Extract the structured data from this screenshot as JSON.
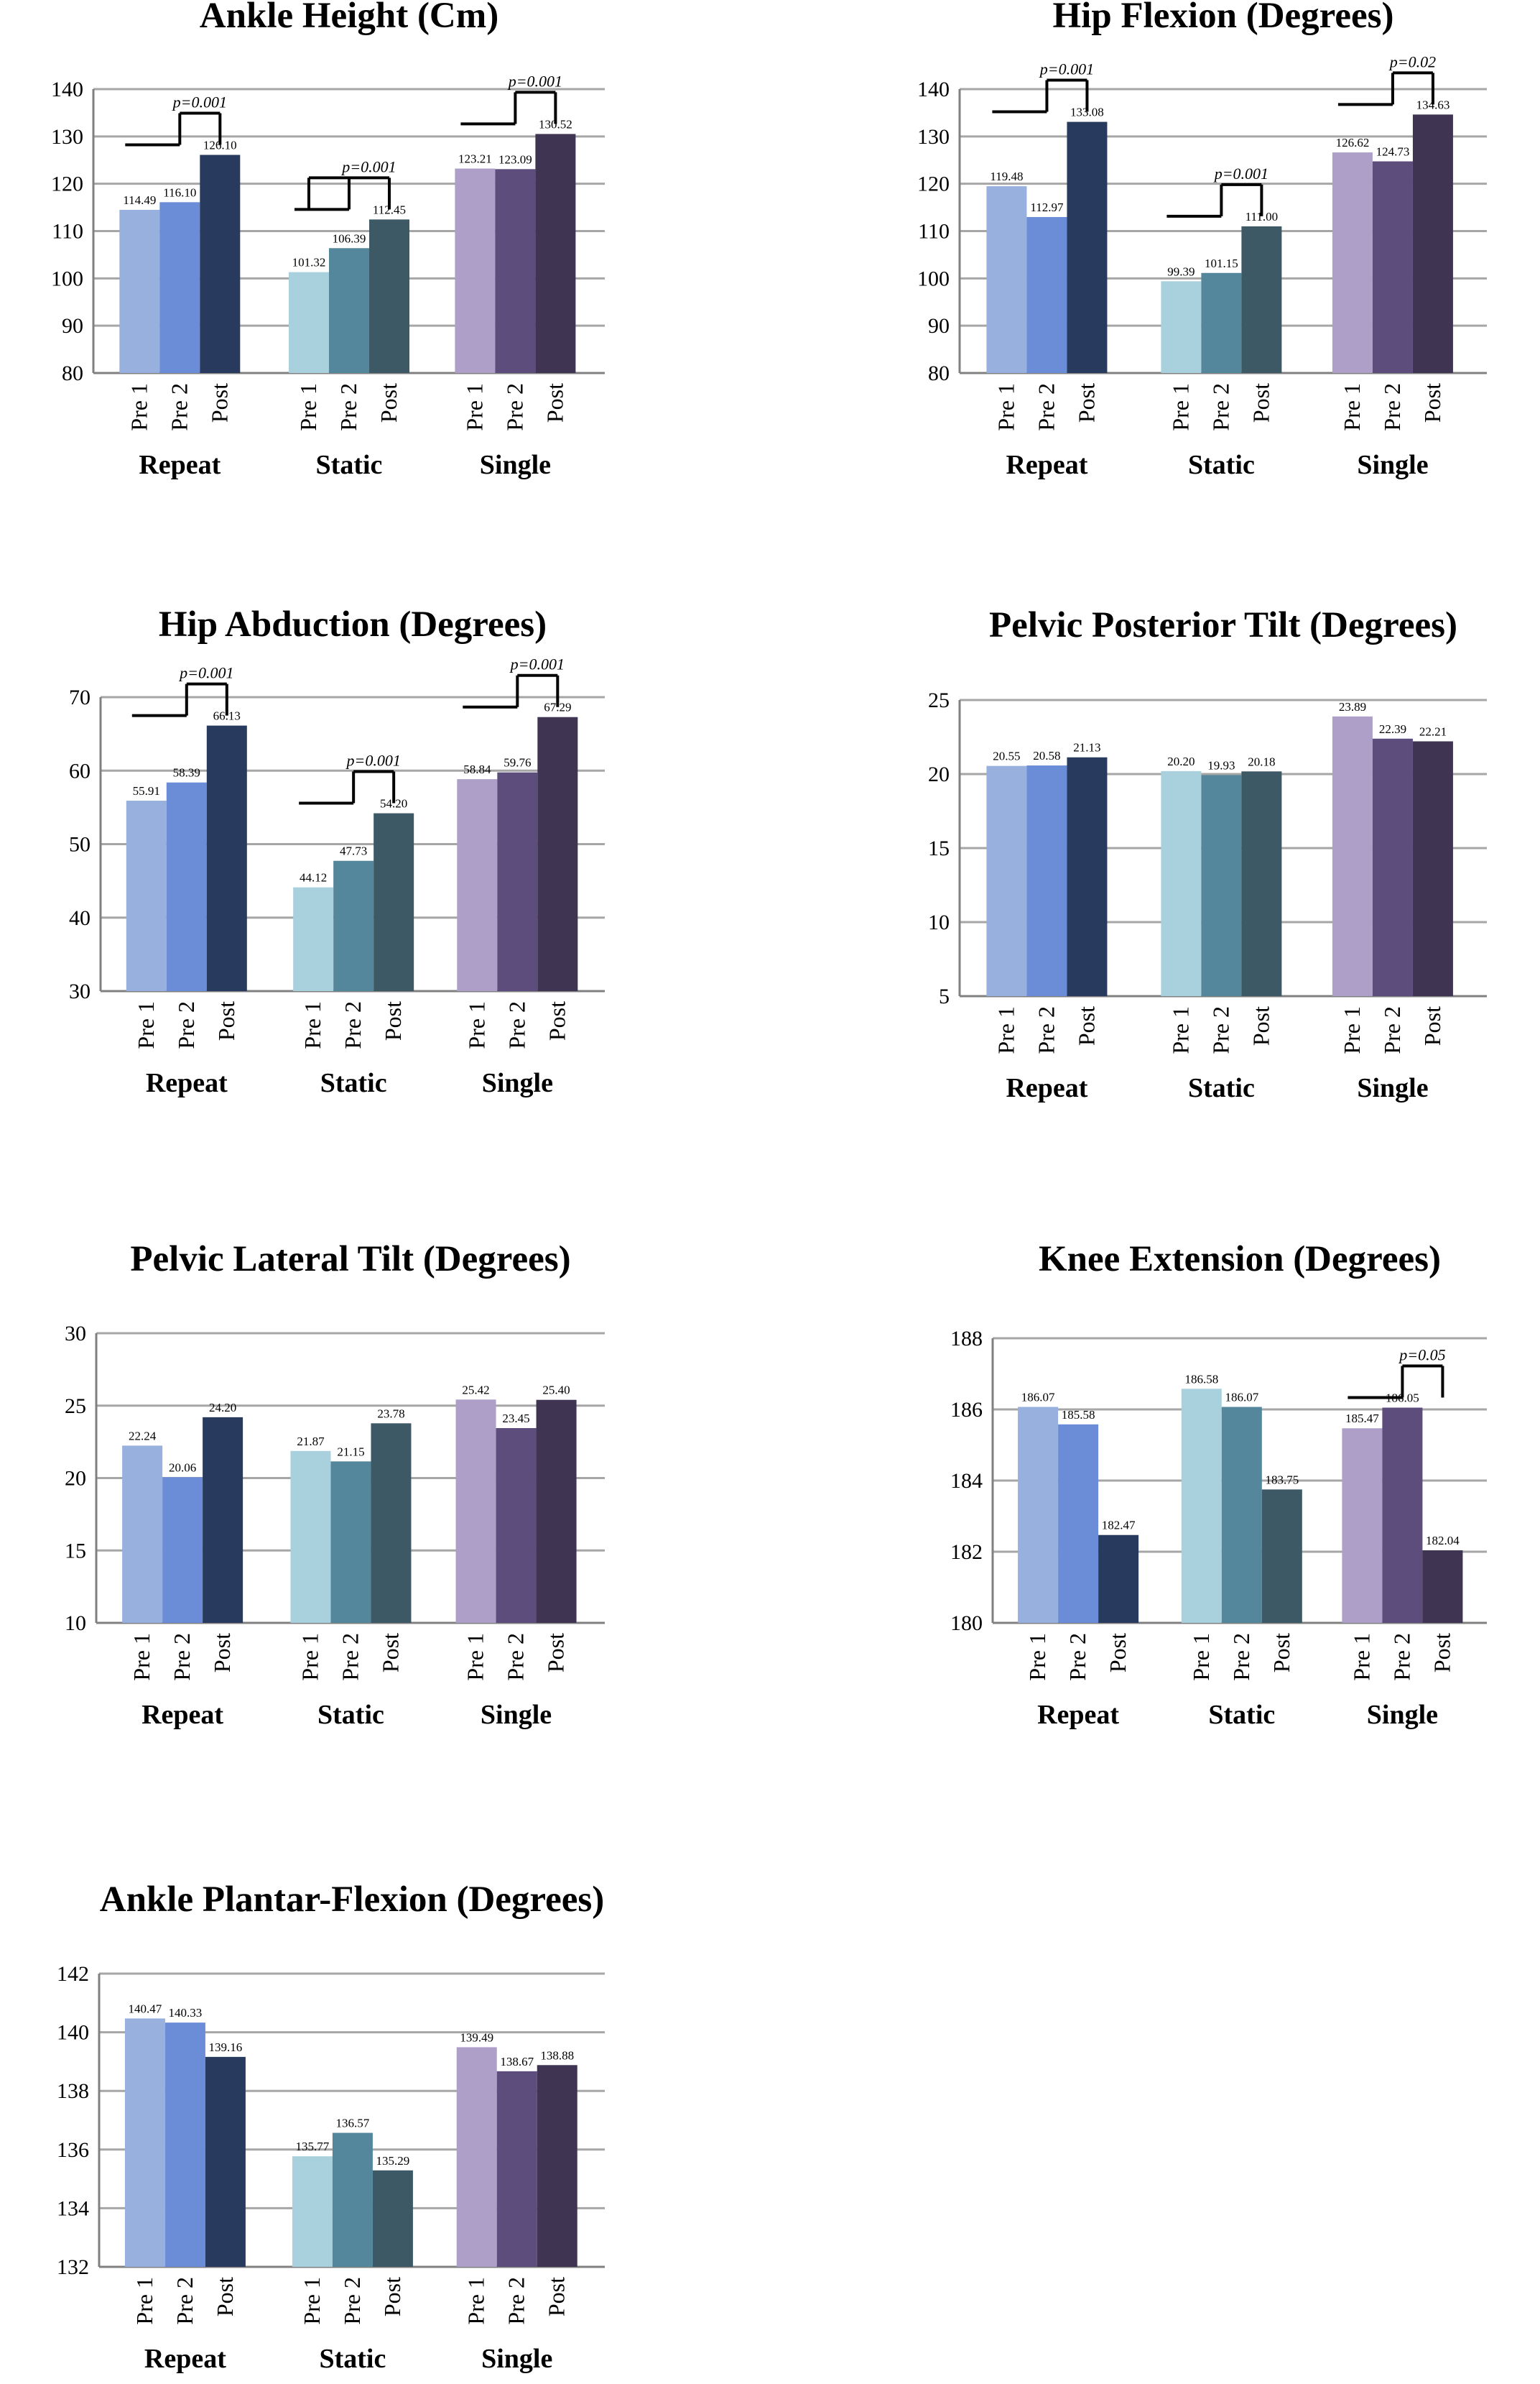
{
  "figure": {
    "colors": {
      "Repeat": [
        "#97b0de",
        "#6b8cd6",
        "#283a5e"
      ],
      "Static": [
        "#a9d1dd",
        "#55879c",
        "#3c5965"
      ],
      "Single": [
        "#ad9fc8",
        "#5c4d7c",
        "#3f3553"
      ],
      "gridline": "#a6a6a6",
      "axis": "#808080",
      "text": "#000000"
    }
  },
  "chart_data": [
    {
      "type": "bar",
      "title": "Ankle Height (Cm)",
      "groups": [
        "Repeat",
        "Static",
        "Single"
      ],
      "categories": [
        "Pre 1",
        "Pre 2",
        "Post"
      ],
      "series": [
        {
          "values": [
            114.49,
            116.1,
            126.1
          ],
          "labels": [
            "114.49",
            "116.10",
            "126.10"
          ]
        },
        {
          "values": [
            101.32,
            106.39,
            112.45
          ],
          "labels": [
            "101.32",
            "106.39",
            "112.45"
          ]
        },
        {
          "values": [
            123.21,
            123.09,
            130.52
          ],
          "labels": [
            "123.21",
            "123.09",
            "130.52"
          ]
        }
      ],
      "ylim": [
        80,
        140
      ],
      "yticks": [
        80,
        90,
        100,
        110,
        120,
        130,
        140
      ],
      "grid": true,
      "annotations": [
        {
          "group": 0,
          "text": "p=0.001",
          "from": 0,
          "to": 2
        },
        {
          "group": 1,
          "text": "p=0.001",
          "from": 0,
          "to": 2,
          "mid": 1
        },
        {
          "group": 2,
          "text": "p=0.001",
          "from": 0,
          "to": 2
        }
      ]
    },
    {
      "type": "bar",
      "title": "Hip Flexion (Degrees)",
      "groups": [
        "Repeat",
        "Static",
        "Single"
      ],
      "categories": [
        "Pre 1",
        "Pre 2",
        "Post"
      ],
      "series": [
        {
          "values": [
            119.48,
            112.97,
            133.08
          ],
          "labels": [
            "119.48",
            "112.97",
            "133.08"
          ]
        },
        {
          "values": [
            99.39,
            101.15,
            111.0
          ],
          "labels": [
            "99.39",
            "101.15",
            "111.00"
          ]
        },
        {
          "values": [
            126.62,
            124.73,
            134.63
          ],
          "labels": [
            "126.62",
            "124.73",
            "134.63"
          ]
        }
      ],
      "ylim": [
        80,
        140
      ],
      "yticks": [
        80,
        90,
        100,
        110,
        120,
        130,
        140
      ],
      "grid": true,
      "annotations": [
        {
          "group": 0,
          "text": "p=0.001",
          "from": 0,
          "to": 2
        },
        {
          "group": 1,
          "text": "p=0.001",
          "from": 0,
          "to": 2
        },
        {
          "group": 2,
          "text": "p=0.02",
          "from": 0,
          "to": 2
        }
      ]
    },
    {
      "type": "bar",
      "title": "Hip Abduction (Degrees)",
      "groups": [
        "Repeat",
        "Static",
        "Single"
      ],
      "categories": [
        "Pre 1",
        "Pre 2",
        "Post"
      ],
      "series": [
        {
          "values": [
            55.91,
            58.39,
            66.13
          ],
          "labels": [
            "55.91",
            "58.39",
            "66.13"
          ]
        },
        {
          "values": [
            44.12,
            47.73,
            54.2
          ],
          "labels": [
            "44.12",
            "47.73",
            "54.20"
          ]
        },
        {
          "values": [
            58.84,
            59.76,
            67.29
          ],
          "labels": [
            "58.84",
            "59.76",
            "67.29"
          ]
        }
      ],
      "ylim": [
        30,
        70
      ],
      "yticks": [
        30,
        40,
        50,
        60,
        70
      ],
      "grid": true,
      "annotations": [
        {
          "group": 0,
          "text": "p=0.001",
          "from": 0,
          "to": 2
        },
        {
          "group": 1,
          "text": "p=0.001",
          "from": 0,
          "to": 2
        },
        {
          "group": 2,
          "text": "p=0.001",
          "from": 0,
          "to": 2
        }
      ]
    },
    {
      "type": "bar",
      "title": "Pelvic Posterior Tilt (Degrees)",
      "groups": [
        "Repeat",
        "Static",
        "Single"
      ],
      "categories": [
        "Pre 1",
        "Pre 2",
        "Post"
      ],
      "series": [
        {
          "values": [
            20.55,
            20.58,
            21.13
          ],
          "labels": [
            "20.55",
            "20.58",
            "21.13"
          ]
        },
        {
          "values": [
            20.2,
            19.93,
            20.18
          ],
          "labels": [
            "20.20",
            "19.93",
            "20.18"
          ]
        },
        {
          "values": [
            23.89,
            22.39,
            22.21
          ],
          "labels": [
            "23.89",
            "22.39",
            "22.21"
          ]
        }
      ],
      "ylim": [
        5,
        25
      ],
      "yticks": [
        5,
        10,
        15,
        20,
        25
      ],
      "grid": true,
      "annotations": []
    },
    {
      "type": "bar",
      "title": "Pelvic Lateral Tilt (Degrees)",
      "groups": [
        "Repeat",
        "Static",
        "Single"
      ],
      "categories": [
        "Pre 1",
        "Pre 2",
        "Post"
      ],
      "series": [
        {
          "values": [
            22.24,
            20.06,
            24.2
          ],
          "labels": [
            "22.24",
            "20.06",
            "24.20"
          ]
        },
        {
          "values": [
            21.87,
            21.15,
            23.78
          ],
          "labels": [
            "21.87",
            "21.15",
            "23.78"
          ]
        },
        {
          "values": [
            25.42,
            23.45,
            25.4
          ],
          "labels": [
            "25.42",
            "23.45",
            "25.40"
          ]
        }
      ],
      "ylim": [
        10,
        30
      ],
      "yticks": [
        10,
        15,
        20,
        25,
        30
      ],
      "grid": true,
      "annotations": []
    },
    {
      "type": "bar",
      "title": "Knee Extension (Degrees)",
      "groups": [
        "Repeat",
        "Static",
        "Single"
      ],
      "categories": [
        "Pre 1",
        "Pre 2",
        "Post"
      ],
      "series": [
        {
          "values": [
            186.07,
            185.58,
            182.47
          ],
          "labels": [
            "186.07",
            "185.58",
            "182.47"
          ]
        },
        {
          "values": [
            186.58,
            186.07,
            183.75
          ],
          "labels": [
            "186.58",
            "186.07",
            "183.75"
          ]
        },
        {
          "values": [
            185.47,
            186.05,
            182.04
          ],
          "labels": [
            "185.47",
            "186.05",
            "182.04"
          ]
        }
      ],
      "ylim": [
        180,
        188
      ],
      "yticks": [
        180,
        182,
        184,
        186,
        188
      ],
      "grid": true,
      "annotations": [
        {
          "group": 2,
          "text": "p=0.05",
          "from": 0,
          "to": 2
        }
      ]
    },
    {
      "type": "bar",
      "title": "Ankle Plantar-Flexion (Degrees)",
      "groups": [
        "Repeat",
        "Static",
        "Single"
      ],
      "categories": [
        "Pre 1",
        "Pre 2",
        "Post"
      ],
      "series": [
        {
          "values": [
            140.47,
            140.33,
            139.16
          ],
          "labels": [
            "140.47",
            "140.33",
            "139.16"
          ]
        },
        {
          "values": [
            135.77,
            136.57,
            135.29
          ],
          "labels": [
            "135.77",
            "136.57",
            "135.29"
          ]
        },
        {
          "values": [
            139.49,
            138.67,
            138.88
          ],
          "labels": [
            "139.49",
            "138.67",
            "138.88"
          ]
        }
      ],
      "ylim": [
        132,
        142
      ],
      "yticks": [
        132,
        134,
        136,
        138,
        140,
        142
      ],
      "grid": true,
      "annotations": []
    }
  ]
}
